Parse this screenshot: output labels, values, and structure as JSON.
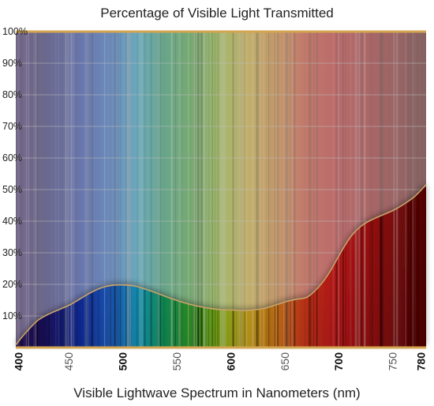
{
  "chart_data": {
    "type": "area",
    "title": "Percentage of Visible Light Transmitted",
    "xlabel": "Visible Lightwave Spectrum in Nanometers (nm)",
    "ylabel": "",
    "xlim": [
      400,
      780
    ],
    "ylim": [
      0,
      100
    ],
    "x_ticks": [
      {
        "value": 400,
        "label": "400",
        "major": true
      },
      {
        "value": 450,
        "label": "450",
        "major": false
      },
      {
        "value": 500,
        "label": "500",
        "major": true
      },
      {
        "value": 550,
        "label": "550",
        "major": false
      },
      {
        "value": 600,
        "label": "600",
        "major": true
      },
      {
        "value": 650,
        "label": "650",
        "major": false
      },
      {
        "value": 700,
        "label": "700",
        "major": true
      },
      {
        "value": 750,
        "label": "750",
        "major": false
      },
      {
        "value": 780,
        "label": "780",
        "major": true
      }
    ],
    "y_ticks": [
      {
        "value": 10,
        "label": "10%"
      },
      {
        "value": 20,
        "label": "20%"
      },
      {
        "value": 30,
        "label": "30%"
      },
      {
        "value": 40,
        "label": "40%"
      },
      {
        "value": 50,
        "label": "50%"
      },
      {
        "value": 60,
        "label": "60%"
      },
      {
        "value": 70,
        "label": "70%"
      },
      {
        "value": 80,
        "label": "80%"
      },
      {
        "value": 90,
        "label": "90%"
      },
      {
        "value": 100,
        "label": "100%"
      }
    ],
    "x": [
      400,
      405,
      410,
      420,
      430,
      440,
      450,
      460,
      470,
      480,
      490,
      500,
      510,
      520,
      530,
      540,
      550,
      560,
      570,
      580,
      590,
      600,
      610,
      620,
      630,
      640,
      650,
      660,
      670,
      680,
      690,
      700,
      710,
      720,
      730,
      740,
      750,
      760,
      770,
      780
    ],
    "series": [
      {
        "values": [
          0.8,
          3,
          5,
          8.5,
          10.5,
          12,
          13.5,
          15.5,
          17.5,
          19,
          19.7,
          19.8,
          19.5,
          18.5,
          17.3,
          16,
          14.8,
          13.8,
          13,
          12.4,
          12,
          11.9,
          11.7,
          11.9,
          12.4,
          13.4,
          14.5,
          15.3,
          16,
          19,
          23.5,
          29.5,
          35,
          38.5,
          40.5,
          42,
          43.5,
          45.5,
          48,
          51.5
        ]
      }
    ],
    "grid": true,
    "legend": "none",
    "colors": {
      "background_tint": "#a6a6a6",
      "axis_line": "#d3a550",
      "curve_stroke": "#c9a46a",
      "title_text": "#222222"
    }
  }
}
